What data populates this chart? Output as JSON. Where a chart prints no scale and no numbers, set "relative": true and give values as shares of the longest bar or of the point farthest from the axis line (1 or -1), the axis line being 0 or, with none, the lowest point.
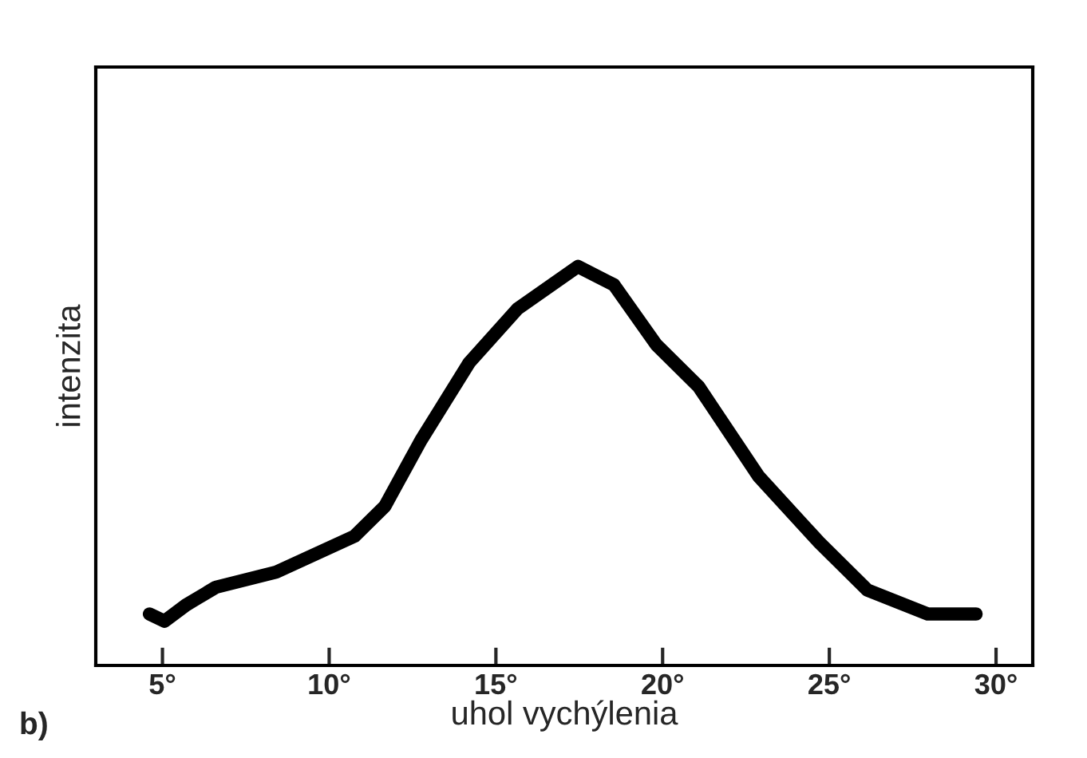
{
  "chart_data": {
    "type": "line",
    "xlabel": "uhol vychýlenia",
    "ylabel": "intenzita",
    "relative": true,
    "annotations": [
      "b)"
    ],
    "xlim": [
      3,
      31.1
    ],
    "xticks": [
      {
        "value": 5,
        "label": "5°"
      },
      {
        "value": 10,
        "label": "10°"
      },
      {
        "value": 15,
        "label": "15°"
      },
      {
        "value": 20,
        "label": "20°"
      },
      {
        "value": 25,
        "label": "25°"
      },
      {
        "value": 30,
        "label": "30°"
      }
    ],
    "grid": false,
    "legend": false,
    "marker": "none",
    "line_style": "solid",
    "series": [
      {
        "color": "#000000",
        "x": [
          4.61,
          5.06,
          5.7,
          6.6,
          8.41,
          10.76,
          11.67,
          12.75,
          14.2,
          15.65,
          17.46,
          18.54,
          19.81,
          21.08,
          22.88,
          24.69,
          26.14,
          27.95,
          29.4
        ],
        "values": [
          0.129,
          0.111,
          0.151,
          0.196,
          0.234,
          0.324,
          0.399,
          0.564,
          0.759,
          0.894,
          1,
          0.954,
          0.804,
          0.699,
          0.474,
          0.309,
          0.189,
          0.129,
          0.129
        ]
      }
    ]
  }
}
